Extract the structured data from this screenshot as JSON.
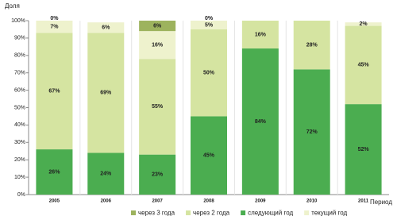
{
  "chart_data": {
    "type": "stacked-bar",
    "y_label": "Доля",
    "x_label": "Период",
    "categories": [
      "2005",
      "2006",
      "2007",
      "2008",
      "2009",
      "2010",
      "2011"
    ],
    "series": [
      {
        "name": "через 3 года",
        "color": "#9db35e",
        "values": [
          0,
          null,
          6,
          0,
          null,
          null,
          null
        ],
        "value_labels": [
          "0%",
          null,
          "6%",
          "0%",
          null,
          null,
          null
        ]
      },
      {
        "name": "через 2 года",
        "color": "#d5e4a1",
        "values": [
          67,
          69,
          55,
          50,
          16,
          28,
          45
        ],
        "value_labels": [
          "67%",
          "69%",
          "55%",
          "50%",
          "16%",
          "28%",
          "45%"
        ]
      },
      {
        "name": "следующий год",
        "color": "#4bad50",
        "values": [
          26,
          24,
          23,
          45,
          84,
          72,
          52
        ],
        "value_labels": [
          "26%",
          "24%",
          "23%",
          "45%",
          "84%",
          "72%",
          "52%"
        ]
      },
      {
        "name": "текущий год",
        "color": "#eef2cd",
        "values": [
          7,
          6,
          16,
          5,
          null,
          null,
          2
        ],
        "value_labels": [
          "7%",
          "6%",
          "16%",
          "5%",
          null,
          null,
          "2%"
        ]
      }
    ],
    "ylim": [
      0,
      100
    ],
    "yticks": [
      {
        "value": 0,
        "label": "0%"
      },
      {
        "value": 10,
        "label": "10%"
      },
      {
        "value": 20,
        "label": "20%"
      },
      {
        "value": 30,
        "label": "30%"
      },
      {
        "value": 40,
        "label": "40%"
      },
      {
        "value": 50,
        "label": "50%"
      },
      {
        "value": 60,
        "label": "60%"
      },
      {
        "value": 70,
        "label": "70%"
      },
      {
        "value": 80,
        "label": "80%"
      },
      {
        "value": 90,
        "label": "90%"
      },
      {
        "value": 100,
        "label": "100%"
      }
    ]
  }
}
